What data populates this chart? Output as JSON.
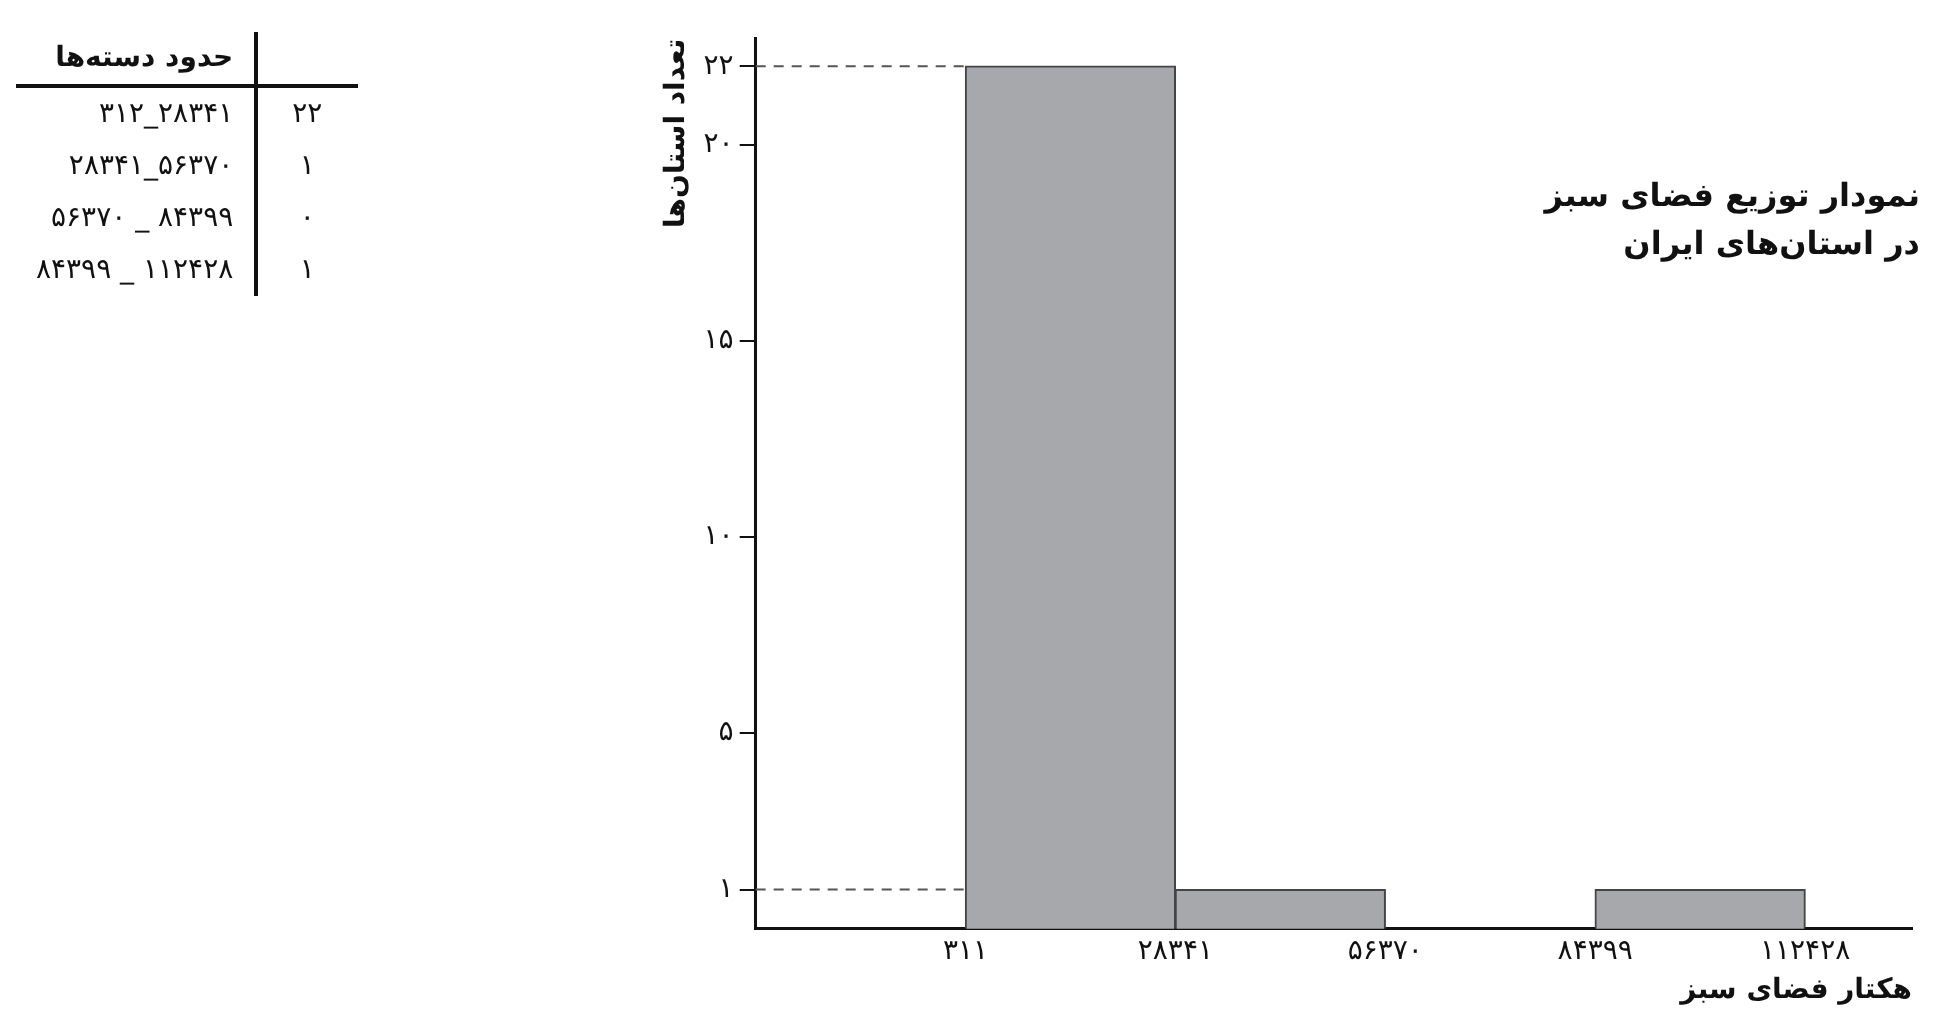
{
  "chart_data": {
    "type": "histogram",
    "title": "نمودار توزیع فضای سبز",
    "subtitle": "در استان‌های ایران",
    "xlabel": "هکتار فضای سبز",
    "ylabel": "تعداد استان‌ها",
    "bins": [
      311,
      28341,
      56370,
      84399,
      112428
    ],
    "values": [
      22,
      1,
      0,
      1
    ],
    "color": "#a7a8ac",
    "xlim": [
      -27700,
      126700
    ],
    "xticks": [
      {
        "value": 311,
        "label": "۳۱۱"
      },
      {
        "value": 28341,
        "label": "۲۸۳۴۱"
      },
      {
        "value": 56370,
        "label": "۵۶۳۷۰"
      },
      {
        "value": 84399,
        "label": "۸۴۳۹۹"
      },
      {
        "value": 112428,
        "label": "۱۱۲۴۲۸"
      }
    ],
    "ylim": [
      0,
      22.7
    ],
    "yticks": [
      {
        "value": 1,
        "label": "۱"
      },
      {
        "value": 5,
        "label": "۵"
      },
      {
        "value": 10,
        "label": "۱۰"
      },
      {
        "value": 15,
        "label": "۱۵"
      },
      {
        "value": 20,
        "label": "۲۰"
      },
      {
        "value": 22,
        "label": "۲۲"
      }
    ],
    "ref_lines": [
      {
        "axis": "y",
        "value": 22,
        "line_style": "dashed"
      },
      {
        "axis": "y",
        "value": 1,
        "line_style": "dashed"
      }
    ],
    "grid": false,
    "legend": false,
    "annotations": [
      "حدود دسته‌ها",
      "۳۱۲_۲۸۳۴۱",
      "۲۲",
      "۲۸۳۴۱_۵۶۳۷۰",
      "۱",
      "۵۶۳۷۰ _ ۸۴۳۹۹",
      "۰",
      "۸۴۳۹۹ _ ۱۱۲۴۲۸",
      "۱"
    ]
  }
}
